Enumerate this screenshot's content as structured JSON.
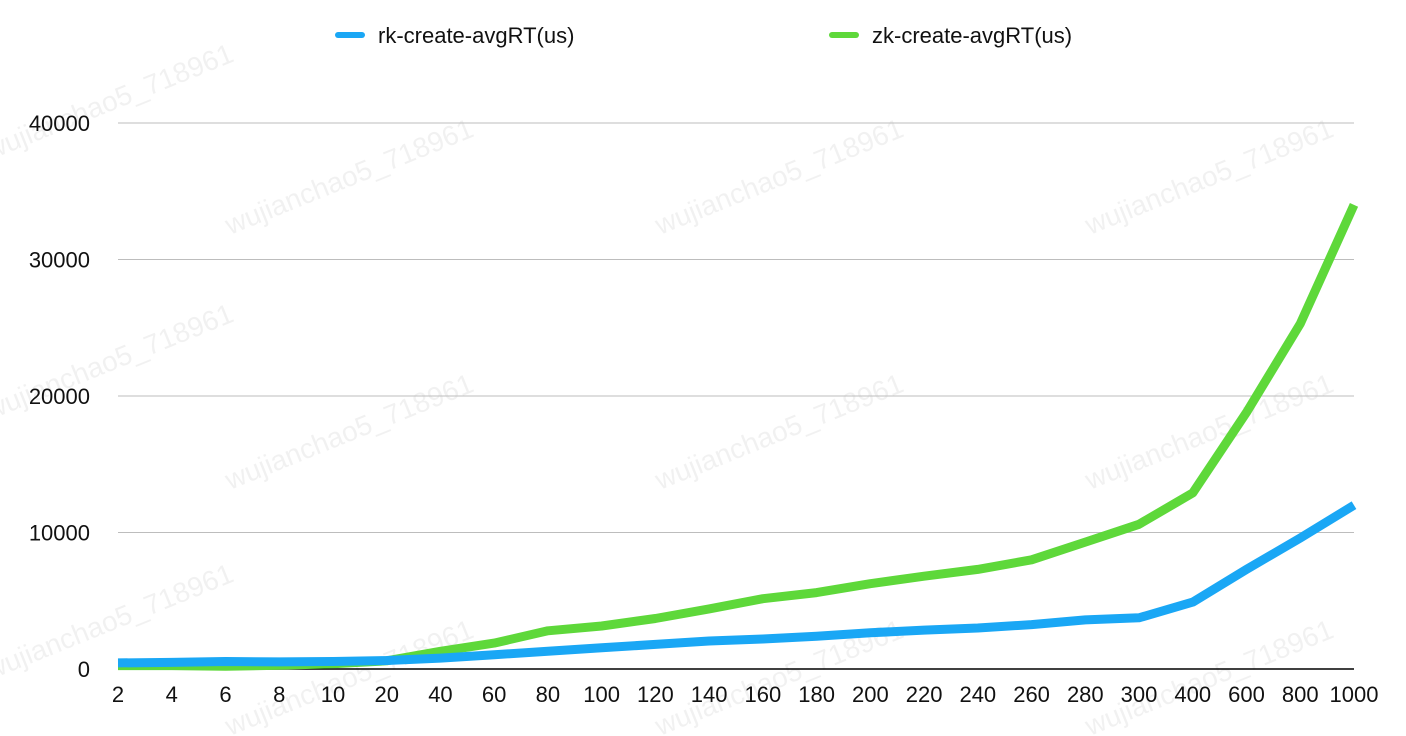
{
  "chart_data": {
    "type": "line",
    "title": "",
    "xlabel": "",
    "ylabel": "",
    "categories": [
      "2",
      "4",
      "6",
      "8",
      "10",
      "20",
      "40",
      "60",
      "80",
      "100",
      "120",
      "140",
      "160",
      "180",
      "200",
      "220",
      "240",
      "260",
      "280",
      "300",
      "400",
      "600",
      "800",
      "1000"
    ],
    "series": [
      {
        "name": "rk-create-avgRT(us)",
        "color": "#1aa7f5",
        "values": [
          450,
          480,
          550,
          520,
          550,
          620,
          800,
          1050,
          1300,
          1550,
          1800,
          2050,
          2200,
          2400,
          2650,
          2850,
          3000,
          3250,
          3600,
          3750,
          4900,
          7300,
          9600,
          12000
        ]
      },
      {
        "name": "zk-create-avgRT(us)",
        "color": "#5ed83a",
        "values": [
          250,
          250,
          200,
          280,
          380,
          600,
          1300,
          1900,
          2800,
          3150,
          3700,
          4400,
          5150,
          5600,
          6250,
          6800,
          7300,
          8000,
          9300,
          10600,
          12900,
          18800,
          25300,
          34000
        ]
      }
    ],
    "ylim": [
      0,
      40000
    ],
    "yticks": [
      0,
      10000,
      20000,
      30000,
      40000
    ],
    "grid": true,
    "legend": "top"
  },
  "watermark": "wujianchao5_718961"
}
